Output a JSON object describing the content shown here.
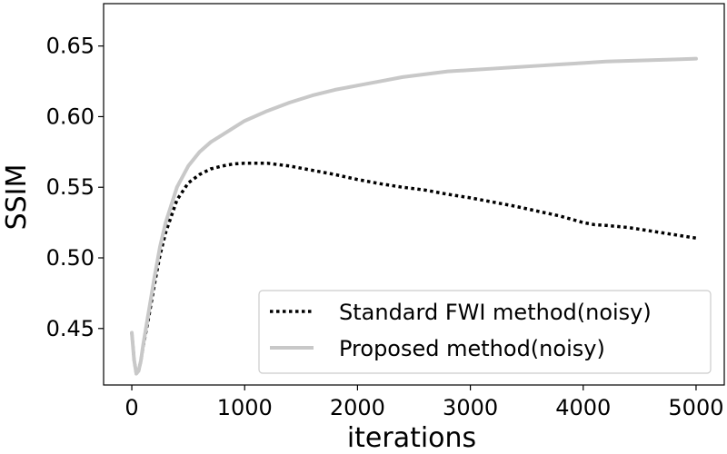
{
  "chart_data": {
    "type": "line",
    "xlabel": "iterations",
    "ylabel": "SSIM",
    "xlim": [
      -250,
      5250
    ],
    "ylim": [
      0.41,
      0.68
    ],
    "xticks": [
      0,
      1000,
      2000,
      3000,
      4000,
      5000
    ],
    "yticks": [
      0.45,
      0.5,
      0.55,
      0.6,
      0.65
    ],
    "xtick_labels": [
      "0",
      "1000",
      "2000",
      "3000",
      "4000",
      "5000"
    ],
    "ytick_labels": [
      "0.45",
      "0.50",
      "0.55",
      "0.60",
      "0.65"
    ],
    "grid": false,
    "legend_position": "bottom-right",
    "series": [
      {
        "name": "Standard FWI method(noisy)",
        "color": "#000000",
        "style": "dotted",
        "x": [
          0,
          20,
          40,
          60,
          80,
          100,
          150,
          200,
          250,
          300,
          400,
          500,
          600,
          700,
          800,
          900,
          1000,
          1100,
          1200,
          1400,
          1600,
          1800,
          2000,
          2200,
          2400,
          2600,
          2800,
          3000,
          3200,
          3400,
          3600,
          3800,
          4000,
          4100,
          4200,
          4400,
          4600,
          4800,
          5000
        ],
        "y": [
          0.447,
          0.428,
          0.418,
          0.42,
          0.427,
          0.437,
          0.458,
          0.481,
          0.502,
          0.518,
          0.541,
          0.553,
          0.559,
          0.563,
          0.565,
          0.5665,
          0.567,
          0.567,
          0.567,
          0.565,
          0.562,
          0.559,
          0.5555,
          0.5525,
          0.55,
          0.548,
          0.545,
          0.5425,
          0.5395,
          0.5365,
          0.533,
          0.5295,
          0.525,
          0.5235,
          0.523,
          0.5215,
          0.519,
          0.5165,
          0.514
        ]
      },
      {
        "name": "Proposed method(noisy)",
        "color": "#c8c8c8",
        "style": "solid",
        "x": [
          0,
          20,
          40,
          60,
          80,
          100,
          150,
          200,
          250,
          300,
          400,
          500,
          600,
          700,
          800,
          1000,
          1200,
          1400,
          1600,
          1800,
          2000,
          2200,
          2400,
          2600,
          2800,
          3000,
          3200,
          3400,
          3600,
          3800,
          4000,
          4200,
          4400,
          4600,
          4800,
          5000
        ],
        "y": [
          0.447,
          0.428,
          0.418,
          0.42,
          0.427,
          0.438,
          0.462,
          0.486,
          0.508,
          0.525,
          0.55,
          0.565,
          0.575,
          0.582,
          0.587,
          0.597,
          0.604,
          0.61,
          0.615,
          0.619,
          0.622,
          0.625,
          0.628,
          0.63,
          0.632,
          0.633,
          0.634,
          0.635,
          0.636,
          0.637,
          0.638,
          0.639,
          0.6395,
          0.64,
          0.6405,
          0.641
        ]
      }
    ]
  }
}
